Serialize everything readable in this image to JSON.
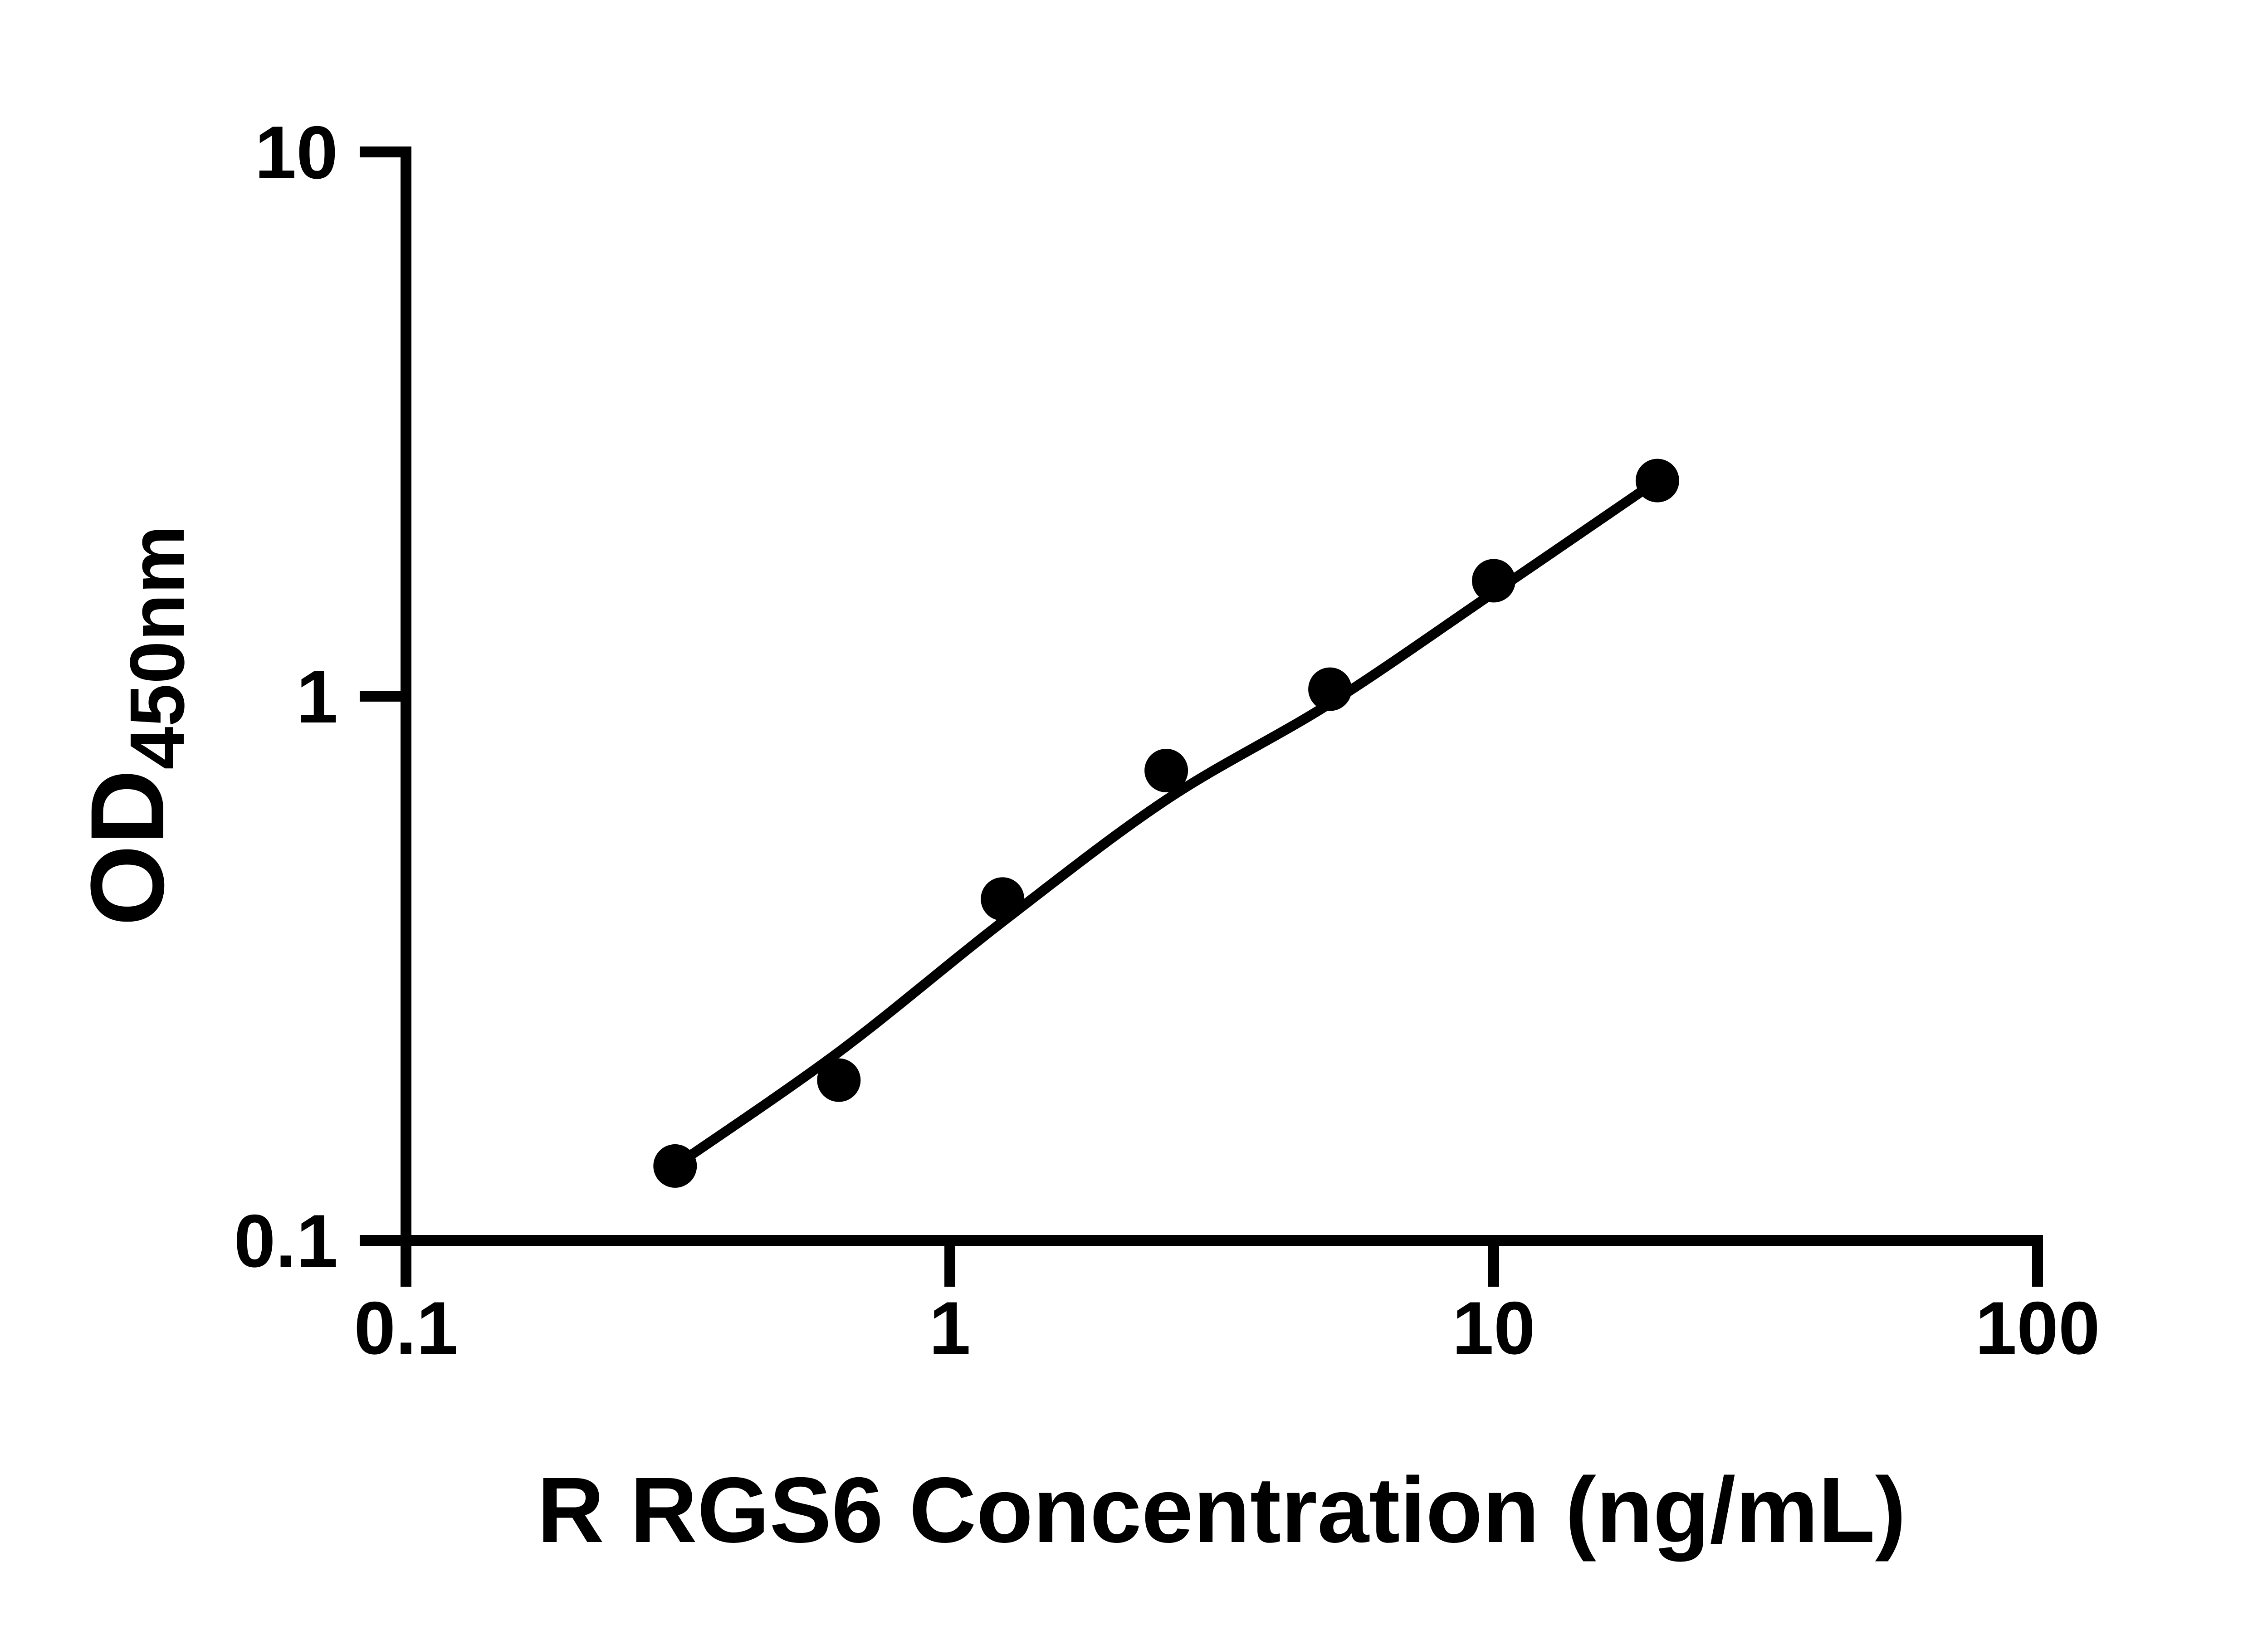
{
  "figure": {
    "background": "#ffffff",
    "foreground": "#000000"
  },
  "chart_data": {
    "type": "scatter",
    "title": "",
    "xlabel": "R RGS6 Concentration (ng/mL)",
    "ylabel": "OD",
    "ylabel_subscript": "450nm",
    "x_scale": "log",
    "y_scale": "log",
    "xlim": [
      0.1,
      100
    ],
    "ylim": [
      0.1,
      10
    ],
    "x_ticks": [
      "0.1",
      "1",
      "10",
      "100"
    ],
    "y_ticks": [
      "10",
      "1",
      "0.1"
    ],
    "grid": false,
    "legend": false,
    "marker_color": "#000000",
    "line_color": "#000000",
    "series": [
      {
        "name": "standard-points",
        "type": "scatter",
        "x": [
          0.3125,
          0.625,
          1.25,
          2.5,
          5,
          10,
          20
        ],
        "y": [
          0.137,
          0.197,
          0.424,
          0.73,
          1.03,
          1.63,
          2.49
        ]
      },
      {
        "name": "fit-curve",
        "type": "line",
        "x": [
          0.3125,
          0.625,
          1.25,
          2.5,
          5,
          10,
          20
        ],
        "y": [
          0.137,
          0.222,
          0.385,
          0.645,
          0.97,
          1.55,
          2.49
        ]
      }
    ]
  }
}
